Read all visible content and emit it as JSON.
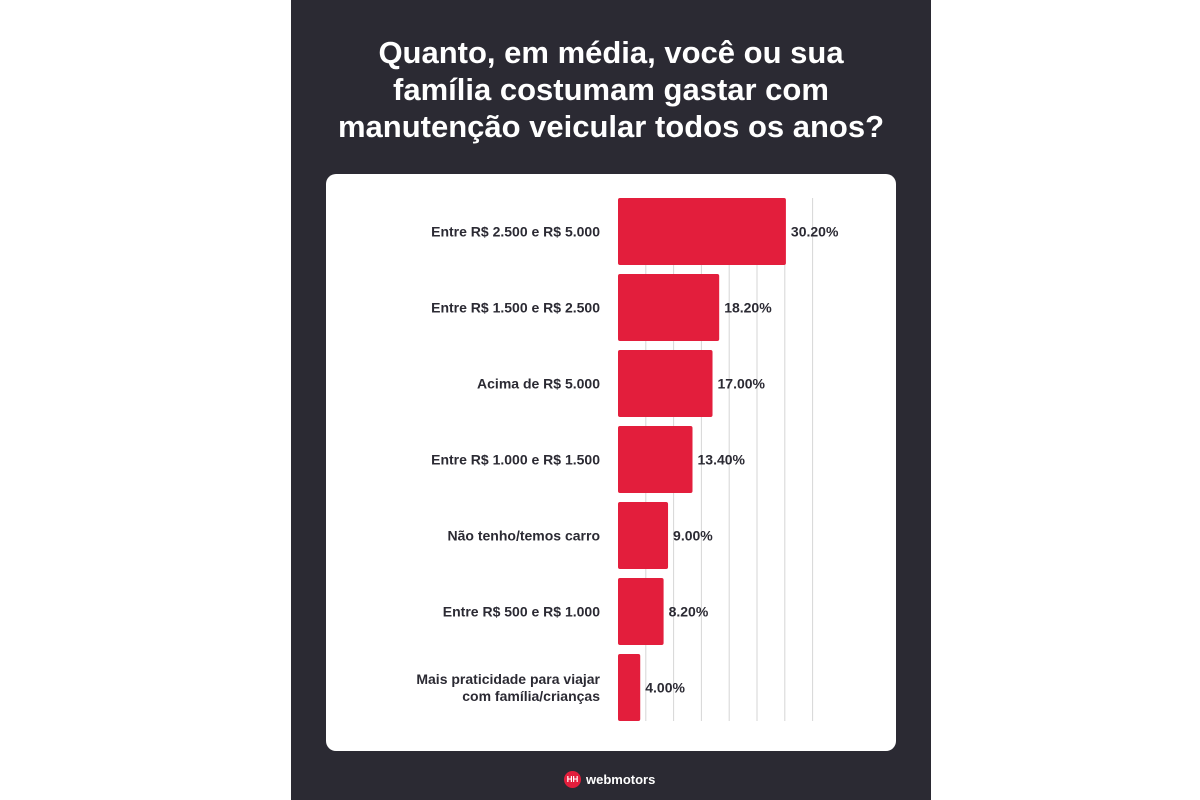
{
  "title_lines": [
    "Quanto, em média, você ou sua",
    "família costumam gastar com",
    "manutenção veicular todos os anos?"
  ],
  "chart_data": {
    "type": "bar",
    "orientation": "horizontal",
    "categories": [
      [
        "Entre R$ 2.500 e R$ 5.000"
      ],
      [
        "Entre R$ 1.500 e R$ 2.500"
      ],
      [
        "Acima de R$ 5.000"
      ],
      [
        "Entre R$ 1.000 e R$ 1.500"
      ],
      [
        "Não tenho/temos carro"
      ],
      [
        "Entre R$ 500 e R$ 1.000"
      ],
      [
        "Mais praticidade para viajar",
        "com família/crianças"
      ]
    ],
    "values": [
      30.2,
      18.2,
      17.0,
      13.4,
      9.0,
      8.2,
      4.0
    ],
    "value_labels": [
      "30.20%",
      "18.20%",
      "17.00%",
      "13.40%",
      "9.00%",
      "8.20%",
      "4.00%"
    ],
    "xlim": [
      0,
      40
    ],
    "grid": true,
    "bar_color": "#e31e3c"
  },
  "colors": {
    "background": "#2b2a33",
    "accent": "#e31e3c"
  },
  "footer": {
    "logo_mark": "HH",
    "brand": "webmotors"
  }
}
